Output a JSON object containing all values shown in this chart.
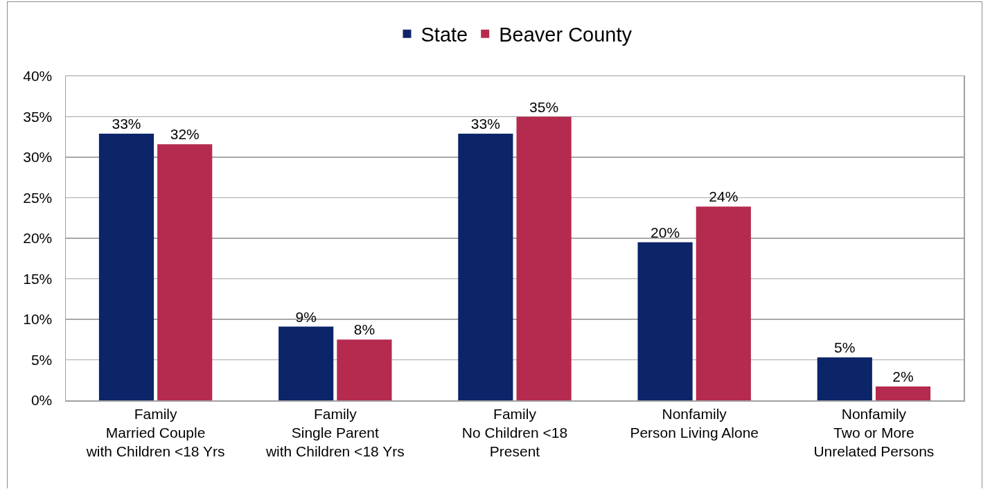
{
  "chart_data": {
    "type": "bar",
    "categories": [
      "Family\nMarried Couple\nwith Children <18 Yrs",
      "Family\nSingle Parent\nwith Children <18 Yrs",
      "Family\nNo Children <18\nPresent",
      "Nonfamily\nPerson Living Alone",
      "Nonfamily\nTwo or More\nUnrelated Persons"
    ],
    "series": [
      {
        "name": "State",
        "color": "#0c2468",
        "values": [
          32.9,
          9.1,
          32.9,
          19.5,
          5.3
        ],
        "value_labels": [
          "33%",
          "9%",
          "33%",
          "20%",
          "5%"
        ]
      },
      {
        "name": "Beaver County",
        "color": "#b52a4f",
        "values": [
          31.6,
          7.5,
          35.0,
          23.9,
          1.7
        ],
        "value_labels": [
          "32%",
          "8%",
          "35%",
          "24%",
          "2%"
        ]
      }
    ],
    "ylim": [
      0,
      40
    ],
    "yticks": [
      {
        "value": 0,
        "label": "0%"
      },
      {
        "value": 5,
        "label": "5%"
      },
      {
        "value": 10,
        "label": "10%"
      },
      {
        "value": 15,
        "label": "15%"
      },
      {
        "value": 20,
        "label": "20%"
      },
      {
        "value": 25,
        "label": "25%"
      },
      {
        "value": 30,
        "label": "30%"
      },
      {
        "value": 35,
        "label": "35%"
      },
      {
        "value": 40,
        "label": "40%"
      }
    ],
    "grid": "y",
    "legend": "top"
  }
}
